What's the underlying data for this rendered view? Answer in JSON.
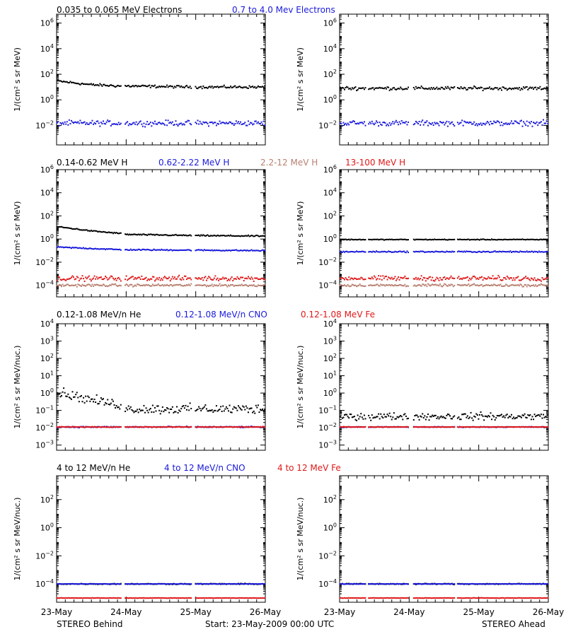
{
  "colors": {
    "black": "#000000",
    "blue": "#1a1adc",
    "tan": "#b88070",
    "red": "#e01818"
  },
  "legends": [
    [
      {
        "text": "0.035 to 0.065 MeV Electrons",
        "color": "#000000"
      },
      {
        "text": "0.7 to 4.0 Mev Electrons",
        "color": "#1a1adc"
      }
    ],
    [
      {
        "text": "0.14-0.62 MeV H",
        "color": "#000000"
      },
      {
        "text": "0.62-2.22 MeV H",
        "color": "#1a1adc"
      },
      {
        "text": "2.2-12 MeV H",
        "color": "#b88070"
      },
      {
        "text": "13-100 MeV H",
        "color": "#e01818"
      }
    ],
    [
      {
        "text": "0.12-1.08 MeV/n He",
        "color": "#000000"
      },
      {
        "text": "0.12-1.08 MeV/n CNO",
        "color": "#1a1adc"
      },
      {
        "text": "0.12-1.08 MeV Fe",
        "color": "#e01818"
      }
    ],
    [
      {
        "text": "4 to 12 MeV/n He",
        "color": "#000000"
      },
      {
        "text": "4 to 12 MeV/n CNO",
        "color": "#1a1adc"
      },
      {
        "text": "4 to 12 MeV Fe",
        "color": "#e01818"
      }
    ]
  ],
  "x_ticks": [
    "23-May",
    "24-May",
    "25-May",
    "26-May"
  ],
  "footer": {
    "left": "STEREO Behind",
    "center": "Start: 23-May-2009 00:00 UTC",
    "right": "STEREO Ahead"
  },
  "chart_data": [
    {
      "type": "scatter",
      "panel": "electrons-behind",
      "y_scale": "log",
      "ylim": [
        0.0003,
        5000000
      ],
      "xlim": [
        0,
        3
      ],
      "ylabel": "1/(cm² s sr MeV)",
      "yticks": [
        "10^-2",
        "10^0",
        "10^2",
        "10^4",
        "10^6"
      ],
      "data_gaps": [
        [
          0.93,
          0.98
        ],
        [
          1.94,
          1.99
        ]
      ],
      "series": [
        {
          "name": "0.035 to 0.065 MeV Electrons",
          "color": "#000000",
          "x": [
            0,
            0.5,
            0.93,
            1.0,
            2.0,
            3.0
          ],
          "y": [
            30,
            15,
            12,
            12,
            10,
            10
          ],
          "scatter": 0.15
        },
        {
          "name": "0.7 to 4.0 Mev Electrons",
          "color": "#1a1adc",
          "x": [
            0,
            3.0
          ],
          "y": [
            0.015,
            0.015
          ],
          "scatter": 0.3
        }
      ]
    },
    {
      "type": "scatter",
      "panel": "electrons-ahead",
      "y_scale": "log",
      "ylim": [
        0.0003,
        5000000
      ],
      "xlim": [
        0,
        3
      ],
      "ylabel": "1/(cm² s sr MeV)",
      "yticks": [
        "10^-2",
        "10^0",
        "10^2",
        "10^4",
        "10^6"
      ],
      "data_gaps": [
        [
          0.38,
          0.41
        ],
        [
          1.0,
          1.05
        ],
        [
          1.66,
          1.69
        ]
      ],
      "series": [
        {
          "name": "0.035 to 0.065 MeV Electrons",
          "color": "#000000",
          "x": [
            0,
            3.0
          ],
          "y": [
            8,
            8
          ],
          "scatter": 0.2
        },
        {
          "name": "0.7 to 4.0 Mev Electrons",
          "color": "#1a1adc",
          "x": [
            0,
            3.0
          ],
          "y": [
            0.015,
            0.015
          ],
          "scatter": 0.3
        }
      ]
    },
    {
      "type": "scatter",
      "panel": "protons-behind",
      "y_scale": "log",
      "ylim": [
        1e-05,
        1000000
      ],
      "xlim": [
        0,
        3
      ],
      "ylabel": "1/(cm² s sr MeV)",
      "yticks": [
        "10^-4",
        "10^-2",
        "10^0",
        "10^2",
        "10^4",
        "10^6"
      ],
      "data_gaps": [
        [
          0.93,
          0.98
        ],
        [
          1.94,
          1.99
        ]
      ],
      "series": [
        {
          "name": "0.14-0.62 MeV H",
          "color": "#000000",
          "x": [
            0,
            0.5,
            0.93,
            1.0,
            2.0,
            3.0
          ],
          "y": [
            12,
            5,
            3,
            2.5,
            2,
            1.8
          ],
          "scatter": 0.08
        },
        {
          "name": "0.62-2.22 MeV H",
          "color": "#1a1adc",
          "x": [
            0,
            0.93,
            3.0
          ],
          "y": [
            0.2,
            0.12,
            0.1
          ],
          "scatter": 0.08
        },
        {
          "name": "2.2-12 MeV H",
          "color": "#b88070",
          "x": [
            0,
            3.0
          ],
          "y": [
            0.0001,
            0.0001
          ],
          "scatter": 0.15
        },
        {
          "name": "13-100 MeV H",
          "color": "#e01818",
          "x": [
            0,
            3.0
          ],
          "y": [
            0.0004,
            0.0004
          ],
          "scatter": 0.3
        }
      ]
    },
    {
      "type": "scatter",
      "panel": "protons-ahead",
      "y_scale": "log",
      "ylim": [
        1e-05,
        1000000
      ],
      "xlim": [
        0,
        3
      ],
      "ylabel": "1/(cm² s sr MeV)",
      "yticks": [
        "10^-4",
        "10^-2",
        "10^0",
        "10^2",
        "10^4",
        "10^6"
      ],
      "data_gaps": [
        [
          0.38,
          0.41
        ],
        [
          1.0,
          1.05
        ],
        [
          1.66,
          1.69
        ]
      ],
      "series": [
        {
          "name": "0.14-0.62 MeV H",
          "color": "#000000",
          "x": [
            0,
            3.0
          ],
          "y": [
            0.9,
            0.9
          ],
          "scatter": 0.05
        },
        {
          "name": "0.62-2.22 MeV H",
          "color": "#1a1adc",
          "x": [
            0,
            3.0
          ],
          "y": [
            0.08,
            0.08
          ],
          "scatter": 0.08
        },
        {
          "name": "2.2-12 MeV H",
          "color": "#b88070",
          "x": [
            0,
            3.0
          ],
          "y": [
            0.0001,
            0.0001
          ],
          "scatter": 0.15
        },
        {
          "name": "13-100 MeV H",
          "color": "#e01818",
          "x": [
            0,
            3.0
          ],
          "y": [
            0.0004,
            0.0004
          ],
          "scatter": 0.3
        }
      ]
    },
    {
      "type": "scatter",
      "panel": "heavy-ions-low-behind",
      "y_scale": "log",
      "ylim": [
        0.0005,
        10000
      ],
      "xlim": [
        0,
        3
      ],
      "ylabel": "1/(cm² s sr MeV/nuc.)",
      "yticks": [
        "10^-3",
        "10^-2",
        "10^-1",
        "10^0",
        "10^1",
        "10^2",
        "10^3",
        "10^4"
      ],
      "data_gaps": [
        [
          0.93,
          0.98
        ],
        [
          1.94,
          1.99
        ]
      ],
      "series": [
        {
          "name": "0.12-1.08 MeV/n He",
          "color": "#000000",
          "x": [
            0,
            0.5,
            0.93,
            1.0,
            2.0,
            3.0
          ],
          "y": [
            1.2,
            0.4,
            0.2,
            0.12,
            0.12,
            0.12
          ],
          "scatter": 0.4
        },
        {
          "name": "0.12-1.08 MeV/n CNO",
          "color": "#1a1adc",
          "x": [
            0,
            3.0
          ],
          "y": [
            0.011,
            0.011
          ],
          "scatter": 0.05
        },
        {
          "name": "0.12-1.08 MeV Fe",
          "color": "#e01818",
          "x": [
            0,
            3.0
          ],
          "y": [
            0.011,
            0.011
          ],
          "scatter": 0.03
        }
      ]
    },
    {
      "type": "scatter",
      "panel": "heavy-ions-low-ahead",
      "y_scale": "log",
      "ylim": [
        0.0005,
        10000
      ],
      "xlim": [
        0,
        3
      ],
      "ylabel": "1/(cm² s sr MeV/nuc.)",
      "yticks": [
        "10^-3",
        "10^-2",
        "10^-1",
        "10^0",
        "10^1",
        "10^2",
        "10^3",
        "10^4"
      ],
      "data_gaps": [
        [
          0.38,
          0.41
        ],
        [
          1.0,
          1.05
        ],
        [
          1.66,
          1.69
        ]
      ],
      "series": [
        {
          "name": "0.12-1.08 MeV/n He",
          "color": "#000000",
          "x": [
            0,
            3.0
          ],
          "y": [
            0.045,
            0.045
          ],
          "scatter": 0.3
        },
        {
          "name": "0.12-1.08 MeV/n CNO",
          "color": "#1a1adc",
          "x": [
            0,
            3.0
          ],
          "y": [
            0.011,
            0.011
          ],
          "scatter": 0.03
        },
        {
          "name": "0.12-1.08 MeV Fe",
          "color": "#e01818",
          "x": [
            0,
            3.0
          ],
          "y": [
            0.011,
            0.011
          ],
          "scatter": 0.02
        }
      ]
    },
    {
      "type": "scatter",
      "panel": "heavy-ions-high-behind",
      "y_scale": "log",
      "ylim": [
        5e-06,
        5000
      ],
      "xlim": [
        0,
        3
      ],
      "ylabel": "1/(cm² s sr MeV/nuc.)",
      "yticks": [
        "10^-4",
        "10^-2",
        "10^0",
        "10^2"
      ],
      "data_gaps": [
        [
          0.93,
          0.98
        ],
        [
          1.94,
          1.99
        ]
      ],
      "series": [
        {
          "name": "4 to 12 MeV/n He",
          "color": "#000000",
          "x": [
            0,
            3.0
          ],
          "y": [
            0.0001,
            0.0001
          ],
          "scatter": 0.05
        },
        {
          "name": "4 to 12 MeV/n CNO",
          "color": "#1a1adc",
          "x": [
            0,
            3.0
          ],
          "y": [
            0.0001,
            0.0001
          ],
          "scatter": 0.02
        },
        {
          "name": "4 to 12 MeV Fe",
          "color": "#e01818",
          "x": [
            0,
            3.0
          ],
          "y": [
            1e-05,
            1e-05
          ],
          "scatter": 0.02
        }
      ]
    },
    {
      "type": "scatter",
      "panel": "heavy-ions-high-ahead",
      "y_scale": "log",
      "ylim": [
        5e-06,
        5000
      ],
      "xlim": [
        0,
        3
      ],
      "ylabel": "1/(cm² s sr MeV/nuc.)",
      "yticks": [
        "10^-4",
        "10^-2",
        "10^0",
        "10^2"
      ],
      "data_gaps": [
        [
          0.38,
          0.41
        ],
        [
          1.0,
          1.05
        ],
        [
          1.66,
          1.69
        ]
      ],
      "series": [
        {
          "name": "4 to 12 MeV/n He",
          "color": "#000000",
          "x": [
            0,
            3.0
          ],
          "y": [
            0.0001,
            0.0001
          ],
          "scatter": 0.05
        },
        {
          "name": "4 to 12 MeV/n CNO",
          "color": "#1a1adc",
          "x": [
            0,
            3.0
          ],
          "y": [
            0.0001,
            0.0001
          ],
          "scatter": 0.02
        },
        {
          "name": "4 to 12 MeV Fe",
          "color": "#e01818",
          "x": [
            0,
            3.0
          ],
          "y": [
            1e-05,
            1e-05
          ],
          "scatter": 0.02
        }
      ]
    }
  ]
}
